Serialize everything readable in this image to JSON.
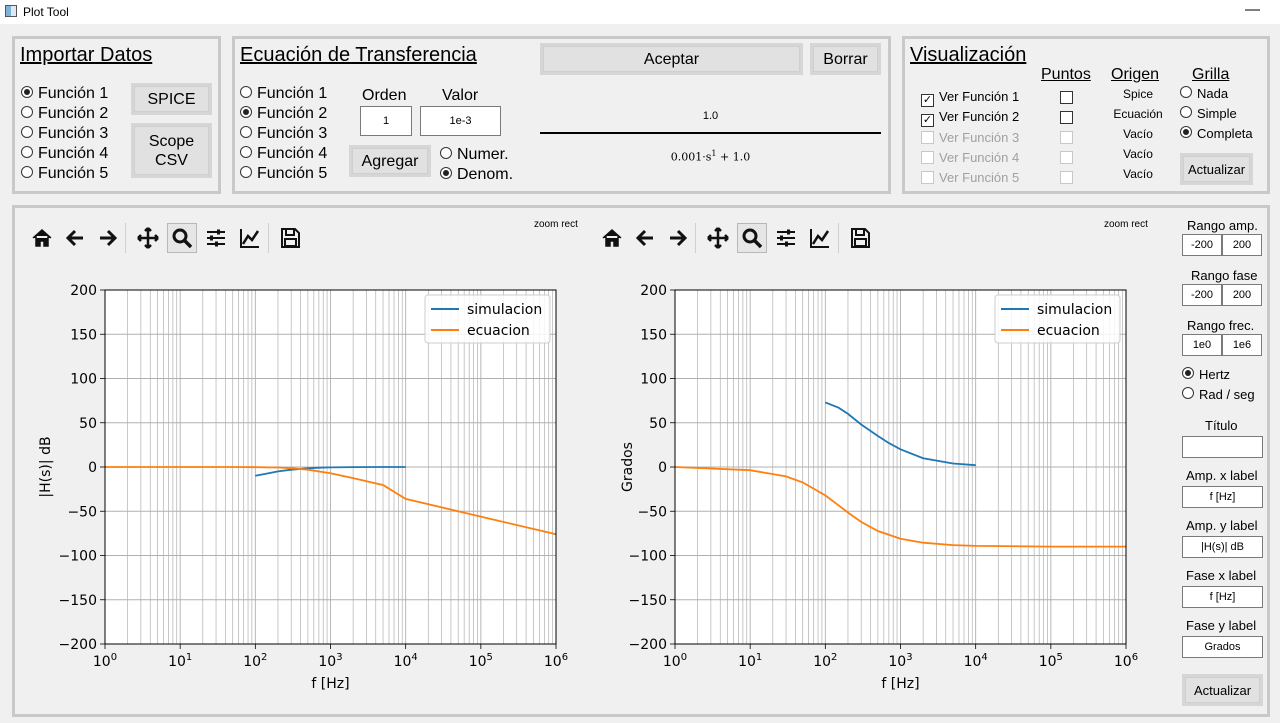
{
  "window": {
    "title": "Plot Tool",
    "minimize": "—"
  },
  "importar": {
    "title": "Importar Datos",
    "functions": [
      "Función 1",
      "Función 2",
      "Función 3",
      "Función 4",
      "Función 5"
    ],
    "selected": 0,
    "spice_label": "SPICE",
    "scope_label_1": "Scope",
    "scope_label_2": "CSV"
  },
  "ecuacion": {
    "title": "Ecuación de Transferencia",
    "functions": [
      "Función 1",
      "Función 2",
      "Función 3",
      "Función 4",
      "Función 5"
    ],
    "selected": 1,
    "orden_label": "Orden",
    "valor_label": "Valor",
    "orden_value": "1",
    "valor_value": "1e-3",
    "agregar_label": "Agregar",
    "numer_label": "Numer.",
    "denom_label": "Denom.",
    "coef_selected": "Denom.",
    "aceptar_label": "Aceptar",
    "borrar_label": "Borrar",
    "numerator": "1.0",
    "denominator_coef": "0.001·s",
    "denominator_exp": "1",
    "denominator_rest": " + 1.0"
  },
  "visualizacion": {
    "title": "Visualización",
    "col_puntos": "Puntos",
    "col_origen": "Origen",
    "col_grilla": "Grilla",
    "rows": [
      {
        "label": "Ver Función 1",
        "checked": true,
        "enabled": true,
        "origen": "Spice"
      },
      {
        "label": "Ver Función 2",
        "checked": true,
        "enabled": true,
        "origen": "Ecuación"
      },
      {
        "label": "Ver Función 3",
        "checked": false,
        "enabled": false,
        "origen": "Vacío"
      },
      {
        "label": "Ver Función 4",
        "checked": false,
        "enabled": false,
        "origen": "Vacío"
      },
      {
        "label": "Ver Función 5",
        "checked": false,
        "enabled": false,
        "origen": "Vacío"
      }
    ],
    "grilla_options": [
      "Nada",
      "Simple",
      "Completa"
    ],
    "grilla_selected": 2,
    "actualizar_label": "Actualizar"
  },
  "toolbar": {
    "zoom_status": "zoom rect",
    "active_tool": "zoom"
  },
  "side": {
    "rango_amp_label": "Rango amp.",
    "rango_amp_min": "-200",
    "rango_amp_max": "200",
    "rango_fase_label": "Rango fase",
    "rango_fase_min": "-200",
    "rango_fase_max": "200",
    "rango_frec_label": "Rango frec.",
    "rango_frec_min": "1e0",
    "rango_frec_max": "1e6",
    "unit_options": [
      "Hertz",
      "Rad / seg"
    ],
    "unit_selected": 0,
    "titulo_label": "Título",
    "titulo_value": "",
    "amp_x_label": "Amp. x label",
    "amp_x_value": "f [Hz]",
    "amp_y_label": "Amp. y label",
    "amp_y_value": "|H(s)| dB",
    "fase_x_label": "Fase x label",
    "fase_x_value": "f [Hz]",
    "fase_y_label": "Fase y label",
    "fase_y_value": "Grados",
    "actualizar_label": "Actualizar"
  },
  "colors": {
    "simulacion": "#1f77b4",
    "ecuacion": "#ff7f0e",
    "grid": "#b0b0b0"
  },
  "chart_data": [
    {
      "type": "line",
      "title": "",
      "xlabel": "f [Hz]",
      "ylabel": "|H(s)| dB",
      "xscale": "log",
      "xlim": [
        1,
        1000000
      ],
      "ylim": [
        -200,
        200
      ],
      "yticks": [
        -200,
        -150,
        -100,
        -50,
        0,
        50,
        100,
        150,
        200
      ],
      "xticks": [
        {
          "v": 1,
          "base": "10",
          "exp": "0"
        },
        {
          "v": 10,
          "base": "10",
          "exp": "1"
        },
        {
          "v": 100,
          "base": "10",
          "exp": "2"
        },
        {
          "v": 1000,
          "base": "10",
          "exp": "3"
        },
        {
          "v": 10000,
          "base": "10",
          "exp": "4"
        },
        {
          "v": 100000,
          "base": "10",
          "exp": "5"
        },
        {
          "v": 1000000,
          "base": "10",
          "exp": "6"
        }
      ],
      "grid": "full",
      "legend": "top-right",
      "series": [
        {
          "name": "simulacion",
          "color": "#1f77b4",
          "x": [
            100,
            150,
            200,
            300,
            500,
            700,
            1000,
            2000,
            5000,
            10000
          ],
          "y": [
            -10,
            -7,
            -5,
            -3,
            -1.5,
            -0.8,
            -0.4,
            -0.1,
            0,
            0
          ]
        },
        {
          "name": "ecuacion",
          "color": "#ff7f0e",
          "x": [
            1,
            10,
            50,
            100,
            159,
            200,
            300,
            500,
            1000,
            2000,
            5000,
            10000,
            100000,
            1000000
          ],
          "y": [
            0,
            0,
            -0.04,
            -0.17,
            -0.4,
            -0.6,
            -1.3,
            -3,
            -7,
            -12.5,
            -20.3,
            -36,
            -56,
            -76
          ]
        }
      ]
    },
    {
      "type": "line",
      "title": "",
      "xlabel": "f [Hz]",
      "ylabel": "Grados",
      "xscale": "log",
      "xlim": [
        1,
        1000000
      ],
      "ylim": [
        -200,
        200
      ],
      "yticks": [
        -200,
        -150,
        -100,
        -50,
        0,
        50,
        100,
        150,
        200
      ],
      "xticks": [
        {
          "v": 1,
          "base": "10",
          "exp": "0"
        },
        {
          "v": 10,
          "base": "10",
          "exp": "1"
        },
        {
          "v": 100,
          "base": "10",
          "exp": "2"
        },
        {
          "v": 1000,
          "base": "10",
          "exp": "3"
        },
        {
          "v": 10000,
          "base": "10",
          "exp": "4"
        },
        {
          "v": 100000,
          "base": "10",
          "exp": "5"
        },
        {
          "v": 1000000,
          "base": "10",
          "exp": "6"
        }
      ],
      "grid": "full",
      "legend": "top-right",
      "series": [
        {
          "name": "simulacion",
          "color": "#1f77b4",
          "x": [
            100,
            150,
            200,
            300,
            500,
            700,
            1000,
            2000,
            5000,
            10000
          ],
          "y": [
            73,
            67,
            60,
            48,
            35,
            27,
            20,
            10,
            4,
            2
          ]
        },
        {
          "name": "ecuacion",
          "color": "#ff7f0e",
          "x": [
            1,
            10,
            30,
            50,
            100,
            159,
            200,
            300,
            500,
            1000,
            2000,
            5000,
            10000,
            100000,
            1000000
          ],
          "y": [
            0,
            -3.6,
            -10.6,
            -17.4,
            -32.1,
            -45,
            -51.5,
            -62,
            -72.3,
            -81,
            -85.5,
            -88.2,
            -89.1,
            -89.9,
            -90
          ]
        }
      ]
    }
  ]
}
